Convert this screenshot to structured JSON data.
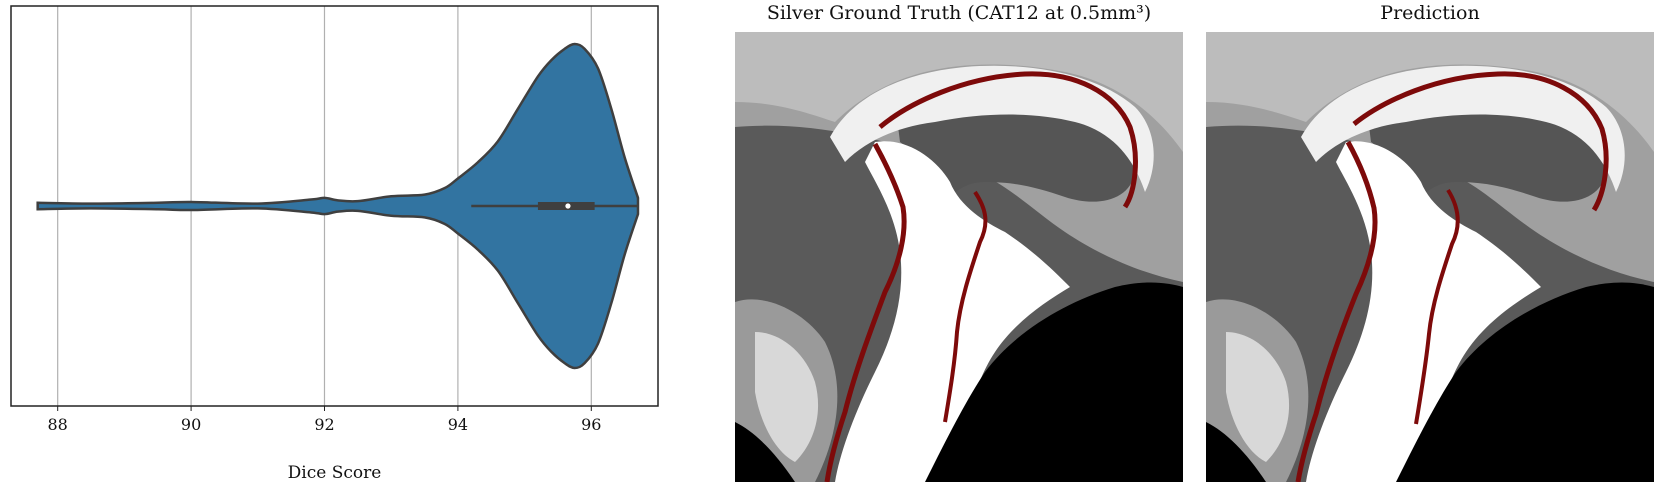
{
  "chart_data": [
    {
      "type": "violin",
      "orientation": "horizontal",
      "xlabel": "Dice Score",
      "ylabel": "",
      "xlim": [
        87.3,
        97.0
      ],
      "xticks": [
        88,
        90,
        92,
        94,
        96
      ],
      "grid": "x",
      "color": "#3274a1",
      "outline_color": "#3f3f3f",
      "density_profile": {
        "x": [
          87.7,
          88.5,
          89.5,
          90.0,
          91.0,
          91.8,
          92.0,
          92.2,
          92.5,
          93.0,
          93.5,
          93.8,
          94.0,
          94.3,
          94.6,
          94.9,
          95.2,
          95.4,
          95.6,
          95.75,
          95.9,
          96.1,
          96.3,
          96.5,
          96.7
        ],
        "half_width": [
          0.02,
          0.015,
          0.02,
          0.025,
          0.015,
          0.04,
          0.05,
          0.035,
          0.03,
          0.06,
          0.07,
          0.11,
          0.17,
          0.27,
          0.4,
          0.6,
          0.8,
          0.9,
          0.97,
          1.0,
          0.97,
          0.85,
          0.6,
          0.3,
          0.05
        ]
      },
      "box": {
        "min": 94.2,
        "q1": 95.2,
        "median": 95.65,
        "q3": 96.05,
        "max": 96.7
      }
    }
  ],
  "panels": {
    "ground_truth": {
      "title": "Silver Ground Truth (CAT12 at 0.5mm³)"
    },
    "prediction": {
      "title": "Prediction"
    }
  },
  "colors": {
    "segmentation_outline": "#7d0a0a",
    "background_tissue": "#5a5a5a",
    "white_matter": "#ffffff",
    "gray_matter": "#a8a8a8",
    "outside": "#000000"
  }
}
